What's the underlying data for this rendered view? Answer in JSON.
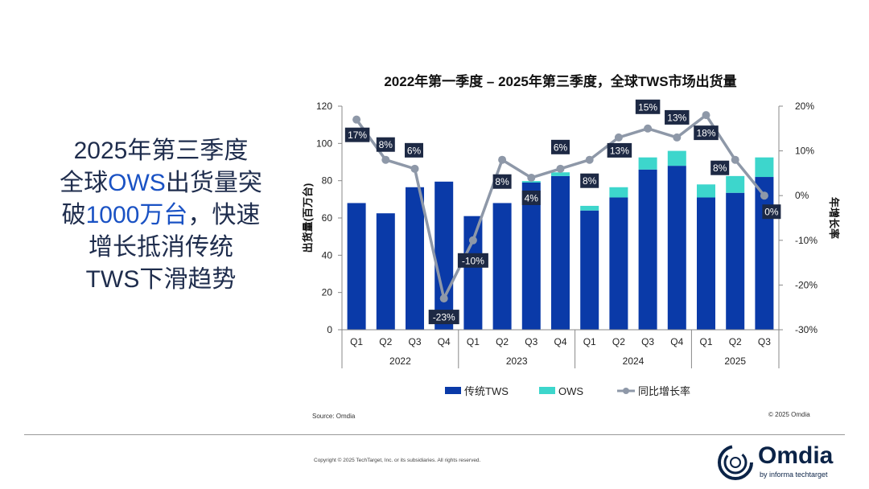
{
  "headline": {
    "line1": "2025年第三季度",
    "line2_a": "全球",
    "line2_b": "OWS",
    "line2_c": "出货量突",
    "line3_a": "破",
    "line3_b": "1000万台",
    "line3_c": "，快速",
    "line4": "增长抵消传统",
    "line5": "TWS下滑趋势"
  },
  "chart_data": {
    "type": "bar",
    "title": "2022年第一季度 – 2025年第三季度，全球TWS市场出货量",
    "ylabel": "出货量(百万台)",
    "y2label": "年增长率",
    "ylim": [
      0,
      120
    ],
    "yticks": [
      "0",
      "20",
      "40",
      "60",
      "80",
      "100",
      "120"
    ],
    "y2lim": [
      -30,
      20
    ],
    "y2ticks": [
      "-30%",
      "-20%",
      "-10%",
      "0%",
      "10%",
      "20%"
    ],
    "categories": [
      "Q1",
      "Q2",
      "Q3",
      "Q4",
      "Q1",
      "Q2",
      "Q3",
      "Q4",
      "Q1",
      "Q2",
      "Q3",
      "Q4",
      "Q1",
      "Q2",
      "Q3"
    ],
    "years": [
      "2022",
      "2023",
      "2024",
      "2025"
    ],
    "stacked": true,
    "series": [
      {
        "name": "传统TWS",
        "kind": "bar",
        "color": "#0a3aa8",
        "values": [
          68,
          62.5,
          76.5,
          79.5,
          61,
          68,
          79,
          82.5,
          64,
          71,
          86,
          88,
          71,
          73.5,
          82
        ]
      },
      {
        "name": "OWS",
        "kind": "bar",
        "color": "#3dd6cc",
        "values": [
          0,
          0,
          0,
          0,
          0,
          0,
          0.8,
          2,
          2.5,
          5.5,
          6.5,
          8,
          7,
          9,
          10.5
        ]
      },
      {
        "name": "同比增长率",
        "kind": "line",
        "axis": "right",
        "color": "#8e98a8",
        "values": [
          17,
          8,
          6,
          -23,
          -10,
          8,
          4,
          6,
          8,
          13,
          15,
          13,
          18,
          8,
          0
        ],
        "labels": [
          "17%",
          "8%",
          "6%",
          "-23%",
          "-10%",
          "8%",
          "4%",
          "6%",
          "8%",
          "13%",
          "15%",
          "13%",
          "18%",
          "8%",
          "0%"
        ]
      }
    ],
    "legend": "bottom",
    "grid": false
  },
  "source": "Source: Omdia",
  "copyright_right": "© 2025 Omdia",
  "footer": "Copyright © 2025 TechTarget, Inc. or its subsidiaries. All rights reserved.",
  "logo": {
    "word": "Omdia",
    "sub": "by informa techtarget"
  }
}
